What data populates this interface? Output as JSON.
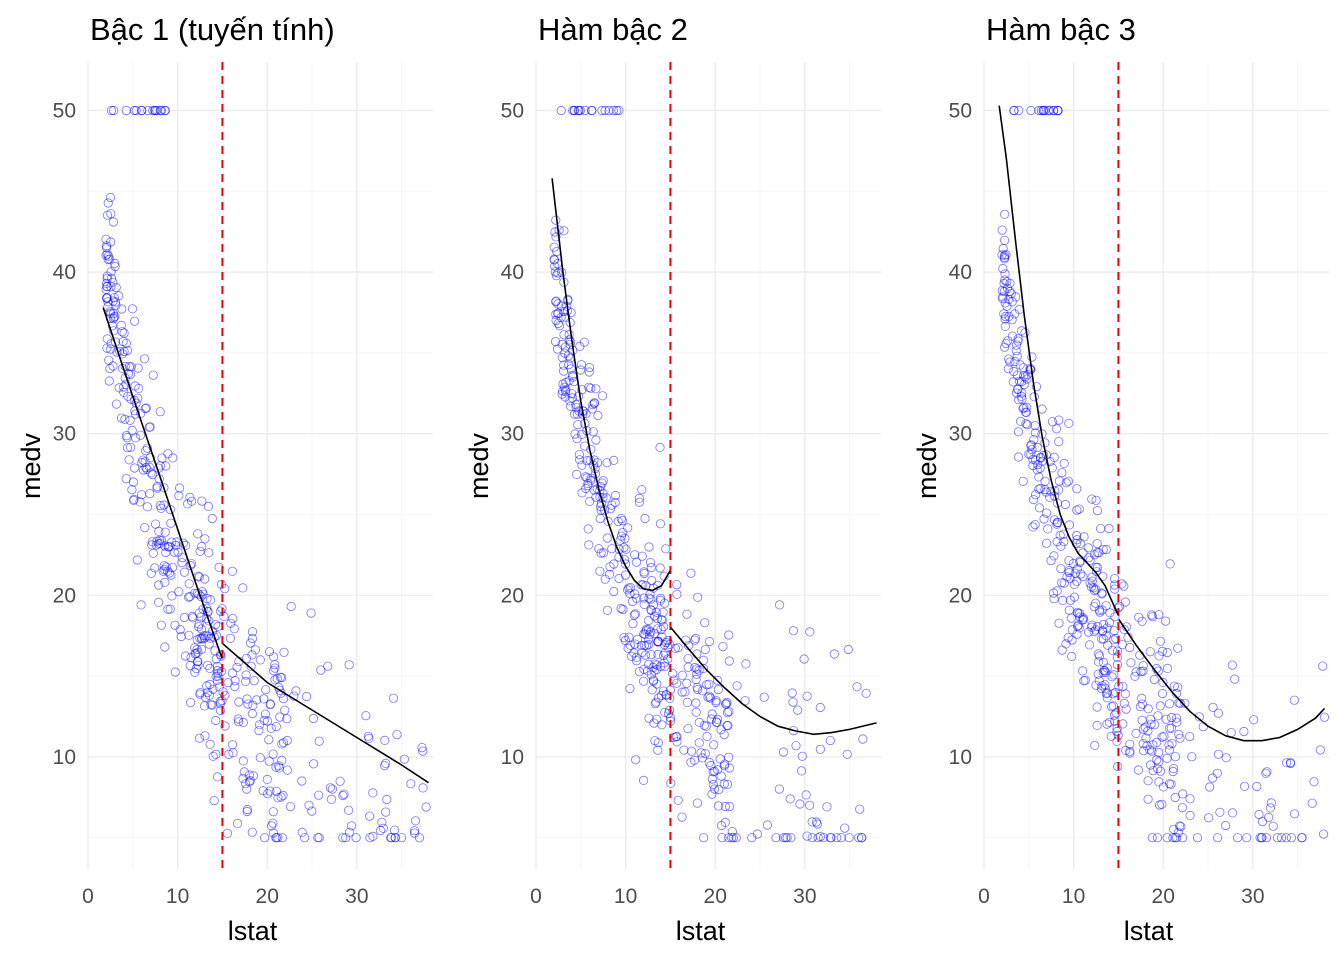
{
  "chart_data": [
    {
      "type": "scatter",
      "title": "Bậc 1 (tuyến tính)",
      "xlabel": "lstat",
      "ylabel": "medv",
      "xlim": [
        0,
        38.5
      ],
      "ylim": [
        3,
        53
      ],
      "xticks": [
        0,
        10,
        20,
        30
      ],
      "yticks": [
        10,
        20,
        30,
        40,
        50
      ],
      "grid": true,
      "legend": "none",
      "knot_x": 15,
      "fit": {
        "name": "",
        "segments": [
          [
            [
              1.7,
              37.8
            ],
            [
              5,
              32.3
            ],
            [
              8,
              27.4
            ],
            [
              10,
              24.1
            ],
            [
              12,
              20.8
            ],
            [
              14.95,
              16.1
            ]
          ],
          [
            [
              15.05,
              17.0
            ],
            [
              20,
              14.6
            ],
            [
              25,
              12.9
            ],
            [
              30,
              11.2
            ],
            [
              35,
              9.5
            ],
            [
              38.0,
              8.4
            ]
          ]
        ]
      },
      "seed": 1
    },
    {
      "type": "scatter",
      "title": "Hàm bậc 2",
      "xlabel": "lstat",
      "ylabel": "medv",
      "xlim": [
        0,
        38.5
      ],
      "ylim": [
        3,
        53
      ],
      "xticks": [
        0,
        10,
        20,
        30
      ],
      "yticks": [
        10,
        20,
        30,
        40,
        50
      ],
      "grid": true,
      "legend": "none",
      "knot_x": 15,
      "fit": {
        "name": "",
        "segments": [
          [
            [
              1.8,
              45.8
            ],
            [
              3,
              40.0
            ],
            [
              4,
              35.8
            ],
            [
              5,
              32.0
            ],
            [
              6,
              29.0
            ],
            [
              7,
              26.6
            ],
            [
              8,
              24.6
            ],
            [
              9,
              23.0
            ],
            [
              10,
              21.8
            ],
            [
              11,
              20.9
            ],
            [
              12,
              20.4
            ],
            [
              13,
              20.3
            ],
            [
              14,
              20.6
            ],
            [
              14.95,
              21.5
            ]
          ],
          [
            [
              15.05,
              18.0
            ],
            [
              17,
              16.7
            ],
            [
              19,
              15.4
            ],
            [
              21,
              14.3
            ],
            [
              23,
              13.3
            ],
            [
              25,
              12.5
            ],
            [
              27,
              11.9
            ],
            [
              29,
              11.6
            ],
            [
              31,
              11.4
            ],
            [
              33,
              11.5
            ],
            [
              35,
              11.7
            ],
            [
              38.0,
              12.1
            ]
          ]
        ]
      },
      "seed": 2
    },
    {
      "type": "scatter",
      "title": "Hàm bậc 3",
      "xlabel": "lstat",
      "ylabel": "medv",
      "xlim": [
        0,
        38.5
      ],
      "ylim": [
        3,
        53
      ],
      "xticks": [
        0,
        10,
        20,
        30
      ],
      "yticks": [
        10,
        20,
        30,
        40,
        50
      ],
      "grid": true,
      "legend": "none",
      "knot_x": 15,
      "fit": {
        "name": "",
        "segments": [
          [
            [
              1.7,
              50.3
            ],
            [
              2.5,
              47.0
            ],
            [
              3.5,
              42.0
            ],
            [
              4.5,
              37.3
            ],
            [
              5.5,
              33.2
            ],
            [
              6.5,
              29.8
            ],
            [
              7.5,
              27.1
            ],
            [
              8.5,
              25.0
            ],
            [
              9.5,
              23.6
            ],
            [
              10.5,
              22.6
            ],
            [
              11.5,
              22.0
            ],
            [
              12.5,
              21.4
            ],
            [
              13.5,
              20.6
            ],
            [
              14.95,
              18.8
            ]
          ],
          [
            [
              15.05,
              18.5
            ],
            [
              17,
              16.9
            ],
            [
              19,
              15.4
            ],
            [
              21,
              14.0
            ],
            [
              23,
              12.8
            ],
            [
              25,
              11.9
            ],
            [
              27,
              11.3
            ],
            [
              29,
              11.0
            ],
            [
              31,
              11.0
            ],
            [
              33,
              11.2
            ],
            [
              35,
              11.7
            ],
            [
              37,
              12.4
            ],
            [
              38.0,
              13.0
            ]
          ]
        ]
      },
      "seed": 3
    }
  ],
  "style": {
    "point_color": "#0000ff",
    "point_opacity": 0.55,
    "fit_color": "#000000",
    "knot_color": "#e8000b",
    "grid_color": "#ebebeb",
    "tick_color": "#4d4d4d"
  }
}
